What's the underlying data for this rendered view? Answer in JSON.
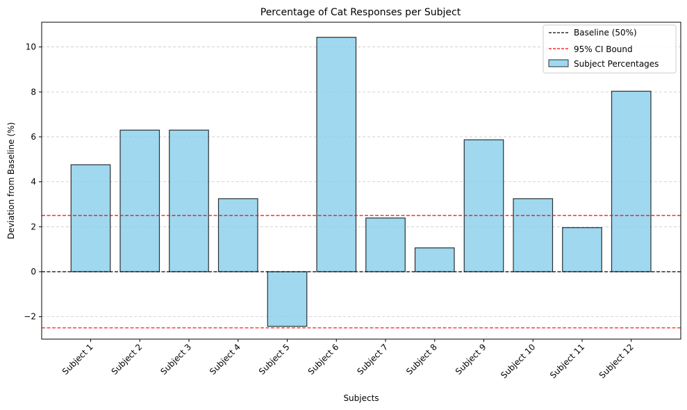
{
  "chart_data": {
    "type": "bar",
    "title": "Percentage of Cat Responses per Subject",
    "xlabel": "Subjects",
    "ylabel": "Deviation from Baseline (%)",
    "categories": [
      "Subject 1",
      "Subject 2",
      "Subject 3",
      "Subject 4",
      "Subject 5",
      "Subject 6",
      "Subject 7",
      "Subject 8",
      "Subject 9",
      "Subject 10",
      "Subject 11",
      "Subject 12"
    ],
    "series": [
      {
        "name": "Subject Percentages",
        "values": [
          4.76,
          6.3,
          6.3,
          3.25,
          -2.43,
          10.43,
          2.39,
          1.06,
          5.87,
          3.25,
          1.96,
          8.03
        ],
        "color": "#87ceeb",
        "edge_color": "#000000"
      }
    ],
    "reference_lines": [
      {
        "name": "Baseline (50%)",
        "y": 0,
        "color": "#000000",
        "style": "dashed"
      },
      {
        "name": "95% CI Bound",
        "y": 2.5,
        "color": "#ff0000",
        "style": "dashed"
      },
      {
        "name": "95% CI Bound",
        "y": -2.5,
        "color": "#ff0000",
        "style": "dashed"
      }
    ],
    "ylim": [
      -3,
      11.1
    ],
    "yticks": [
      -2,
      0,
      2,
      4,
      6,
      8,
      10
    ],
    "ytick_labels": [
      "−2",
      "0",
      "2",
      "4",
      "6",
      "8",
      "10"
    ],
    "grid": "y",
    "legend": {
      "position": "top-right",
      "entries": [
        "Baseline (50%)",
        "95% CI Bound",
        "Subject Percentages"
      ]
    }
  }
}
